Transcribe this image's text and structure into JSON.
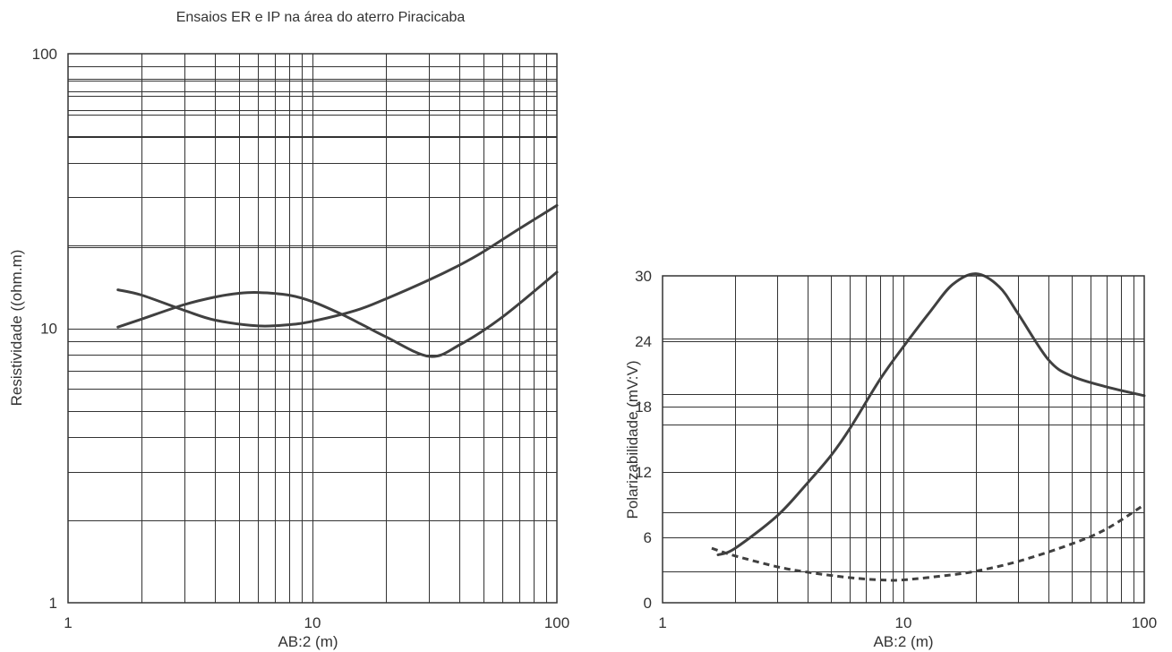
{
  "title": "Ensaios ER e IP na área do aterro Piracicaba",
  "colors": {
    "line": "#404040",
    "grid": "#333333",
    "text": "#333333"
  },
  "chart_data": [
    {
      "type": "line",
      "xscale": "log",
      "yscale": "log",
      "xlabel": "AB:2 (m)",
      "ylabel": "Resistividade ((ohm.m)",
      "xlim": [
        1,
        100
      ],
      "ylim": [
        1,
        100
      ],
      "xticks": [
        1,
        10,
        100
      ],
      "xtick_labels": [
        "1",
        "10",
        "100"
      ],
      "yticks": [
        1,
        10,
        100
      ],
      "ytick_labels": [
        "1",
        "10",
        "100"
      ],
      "grid": true,
      "series": [
        {
          "style": "solid",
          "x": [
            1.6,
            2,
            3,
            4,
            5,
            6,
            8,
            10,
            13,
            16,
            20,
            30,
            40,
            60,
            100
          ],
          "y": [
            10.1,
            10.8,
            12.2,
            13,
            13.4,
            13.5,
            13.2,
            12.5,
            11.3,
            10.3,
            9.3,
            7.9,
            8.7,
            11,
            16
          ]
        },
        {
          "style": "solid",
          "x": [
            1.6,
            2,
            3,
            4,
            6,
            8,
            10,
            15,
            20,
            30,
            40,
            50,
            70,
            100
          ],
          "y": [
            13.8,
            13.2,
            11.6,
            10.7,
            10.2,
            10.3,
            10.6,
            11.6,
            12.8,
            15,
            17,
            19,
            23,
            28
          ]
        }
      ]
    },
    {
      "type": "line",
      "xscale": "log",
      "yscale": "linear",
      "xlabel": "AB:2 (m)",
      "ylabel": "Polarizabilidade (mV:V)",
      "xlim": [
        1,
        100
      ],
      "ylim": [
        0,
        30
      ],
      "xticks": [
        1,
        10,
        100
      ],
      "xtick_labels": [
        "1",
        "10",
        "100"
      ],
      "yticks": [
        0,
        6,
        12,
        18,
        24,
        30
      ],
      "ytick_labels": [
        "0",
        "6",
        "12",
        "18",
        "24",
        "30"
      ],
      "grid": true,
      "series": [
        {
          "style": "solid",
          "x": [
            1.7,
            2,
            3,
            4,
            5,
            6,
            8,
            10,
            13,
            16,
            20,
            25,
            30,
            40,
            50,
            70,
            100
          ],
          "y": [
            4.4,
            5,
            8,
            11,
            13.5,
            16,
            20.5,
            23.5,
            26.8,
            29.2,
            30.2,
            29,
            26.5,
            22.3,
            20.8,
            19.8,
            19
          ]
        },
        {
          "style": "dashed",
          "x": [
            1.6,
            2,
            3,
            4,
            6,
            8,
            10,
            15,
            20,
            30,
            50,
            70,
            100
          ],
          "y": [
            5,
            4.3,
            3.3,
            2.8,
            2.3,
            2.1,
            2.1,
            2.5,
            2.9,
            3.8,
            5.4,
            6.8,
            9
          ]
        }
      ]
    }
  ]
}
